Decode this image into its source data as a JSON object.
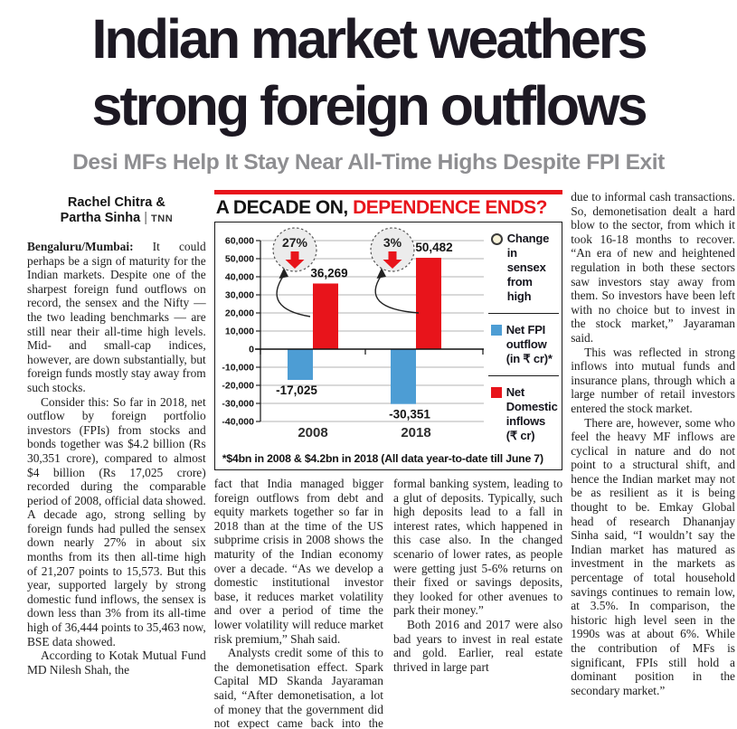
{
  "headline": "Indian market weathers\nstrong foreign outflows",
  "subheadline": "Desi MFs Help It Stay Near All-Time Highs Despite FPI Exit",
  "byline": {
    "line1": "Rachel Chitra &",
    "line2": "Partha Sinha",
    "agency": "TNN"
  },
  "article": {
    "dateline": "Bengaluru/Mumbai:",
    "col1": {
      "p1": "It could perhaps be a sign of maturity for the Indian markets. Despite one of the sharpest foreign fund outflows on record, the sensex and the Nifty — the two leading benchmarks — are still near their all-time high levels. Mid- and small-cap indices, however, are down substantially, but foreign funds mostly stay away from such stocks.",
      "p2": "Consider this: So far in 2018, net outflow by foreign portfolio investors (FPIs) from stocks and bonds together was $4.2 billion (Rs 30,351 crore), compared to almost $4 billion (Rs 17,025 crore) recorded during the comparable period of 2008, official data showed. A decade ago, strong selling by foreign funds had pulled the sensex down nearly 27% in about six months from its then all-time high of 21,207 points to 15,573. But this year, supported largely by strong domestic fund inflows, the sensex is down less than 3% from its all-time high of 36,444 points to 35,463 now, BSE data showed.",
      "p3": "According to Kotak Mutual Fund MD Nilesh Shah, the"
    },
    "middle": {
      "p1": "fact that India managed bigger foreign outflows from debt and equity markets together so far in 2018 than at the time of the US subprime crisis in 2008 shows the maturity of the Indian economy over a decade. “As we develop a domestic institutional investor base, it reduces market volatility and over a period of time the lower volatility will reduce market risk premium,” Shah said.",
      "p2": "Analysts credit some of this to the demonetisation effect. Spark Capital MD Skanda Jayaraman said, “After demonetisation, a lot of money that the government did not expect came back into the formal banking system, leading to a glut of deposits. Typically, such high deposits lead to a fall in interest rates, which happened in this case also. In the changed scenario of lower rates, as people were getting just 5-6% returns on their fixed or savings deposits, they looked for other avenues to park their money.”",
      "p3": "Both 2016 and 2017 were also bad years to invest in real estate and gold. Earlier, real estate thrived in large part"
    },
    "col4": {
      "p1": "due to informal cash transactions. So, demonetisation dealt a hard blow to the sector, from which it took 16-18 months to recover. “An era of new and heightened regulation in both these sectors saw investors stay away from them. So investors have been left with no choice but to invest in the stock market,” Jayaraman said.",
      "p2": "This was reflected in strong inflows into mutual funds and insurance plans, through which a large number of retail investors entered the stock market.",
      "p3": "There are, however, some who feel the heavy MF inflows are cyclical in nature and do not point to a structural shift, and hence the Indian market may not be as resilient as it is being thought to be. Emkay Global head of research Dhananjay Sinha said, “I wouldn’t say the Indian market has matured as investment in the markets as percentage of total household savings continues to remain low, at 3.5%. In comparison, the historic high level seen in the 1990s was at about 6%. While the contribution of MFs is significant, FPIs still hold a dominant position in the secondary market.”"
    }
  },
  "chart": {
    "title_black": "A DECADE ON,",
    "title_red": "DEPENDENCE ENDS?",
    "legend": [
      {
        "icon": "circle-icon",
        "label": "Change in sensex from high"
      },
      {
        "icon": "blue-square-icon",
        "label": "Net FPI outflow (in ₹ cr)*"
      },
      {
        "icon": "red-square-icon",
        "label": "Net Domestic inflows (₹ cr)"
      }
    ]
  },
  "chart_data": {
    "type": "bar",
    "title": "A DECADE ON, DEPENDENCE ENDS?",
    "categories": [
      "2008",
      "2018"
    ],
    "series": [
      {
        "name": "Net FPI outflow (in ₹ cr)",
        "color": "#4d9dd4",
        "values": [
          -17025,
          -30351
        ]
      },
      {
        "name": "Net Domestic inflows (₹ cr)",
        "color": "#e8141b",
        "values": [
          36269,
          50482
        ]
      }
    ],
    "annotations": {
      "change_in_sensex_from_high": [
        "27%",
        "3%"
      ]
    },
    "ylim": [
      -40000,
      60000
    ],
    "ytick_step": 10000,
    "grid": true,
    "legend_position": "right",
    "footnote": "*$4bn in 2008 & $4.2bn in 2018 (All data year-to-date till June 7)"
  },
  "colors": {
    "accent_red": "#e8141b",
    "fpi_blue": "#4d9dd4",
    "subhead_gray": "#8e8e91"
  }
}
